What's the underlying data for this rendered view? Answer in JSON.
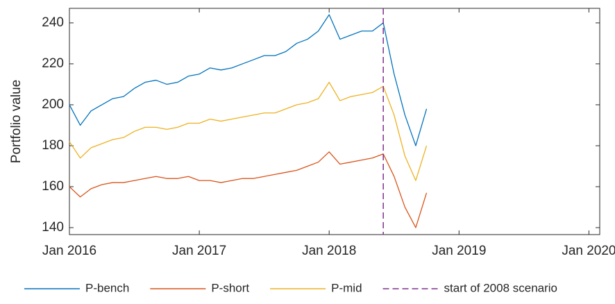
{
  "chart_data": {
    "type": "line",
    "ylabel": "Portfolio value",
    "x": [
      "2016-01",
      "2016-02",
      "2016-03",
      "2016-04",
      "2016-05",
      "2016-06",
      "2016-07",
      "2016-08",
      "2016-09",
      "2016-10",
      "2016-11",
      "2016-12",
      "2017-01",
      "2017-02",
      "2017-03",
      "2017-04",
      "2017-05",
      "2017-06",
      "2017-07",
      "2017-08",
      "2017-09",
      "2017-10",
      "2017-11",
      "2017-12",
      "2018-01",
      "2018-02",
      "2018-03",
      "2018-04",
      "2018-05",
      "2018-06",
      "2018-07",
      "2018-08",
      "2018-09",
      "2018-10"
    ],
    "series": [
      {
        "name": "P-bench",
        "color": "#0072bd",
        "values": [
          200,
          190,
          197,
          200,
          203,
          204,
          208,
          211,
          212,
          210,
          211,
          214,
          215,
          218,
          217,
          218,
          220,
          222,
          224,
          224,
          226,
          230,
          232,
          236,
          244,
          232,
          234,
          236,
          236,
          240,
          215,
          195,
          180,
          198
        ]
      },
      {
        "name": "P-short",
        "color": "#d95319",
        "values": [
          160,
          155,
          159,
          161,
          162,
          162,
          163,
          164,
          165,
          164,
          164,
          165,
          163,
          163,
          162,
          163,
          164,
          164,
          165,
          166,
          167,
          168,
          170,
          172,
          177,
          171,
          172,
          173,
          174,
          176,
          165,
          150,
          140,
          157
        ]
      },
      {
        "name": "P-mid",
        "color": "#edb120",
        "values": [
          182,
          174,
          179,
          181,
          183,
          184,
          187,
          189,
          189,
          188,
          189,
          191,
          191,
          193,
          192,
          193,
          194,
          195,
          196,
          196,
          198,
          200,
          201,
          203,
          211,
          202,
          204,
          205,
          206,
          209,
          195,
          175,
          163,
          180
        ]
      }
    ],
    "vline": {
      "name": "start of 2008 scenario",
      "color": "#7e2f8e",
      "x": "2018-06"
    },
    "xlim": [
      "2016-01",
      "2020-02"
    ],
    "xticks": [
      {
        "value": "2016-01",
        "label": "Jan 2016"
      },
      {
        "value": "2017-01",
        "label": "Jan 2017"
      },
      {
        "value": "2018-01",
        "label": "Jan 2018"
      },
      {
        "value": "2019-01",
        "label": "Jan 2019"
      },
      {
        "value": "2020-01",
        "label": "Jan 2020"
      }
    ],
    "ylim": [
      136.6,
      247.1
    ],
    "yticks": [
      140,
      160,
      180,
      200,
      220,
      240
    ],
    "grid": false,
    "legend": "bottom"
  }
}
